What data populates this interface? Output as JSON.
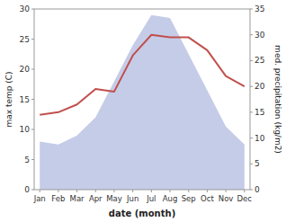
{
  "chart_data": {
    "type": "line",
    "categories": [
      "Jan",
      "Feb",
      "Mar",
      "Apr",
      "May",
      "Jun",
      "Jul",
      "Aug",
      "Sep",
      "Oct",
      "Nov",
      "Dec"
    ],
    "series": [
      {
        "type": "area",
        "color": "#c5cce8",
        "values": [
          8.0,
          7.5,
          9.0,
          12.0,
          18.0,
          24.0,
          29.0,
          28.5,
          22.5,
          16.5,
          10.5,
          7.5
        ]
      },
      {
        "type": "line",
        "color": "#c0504d",
        "axis": "y2",
        "values": [
          14.5,
          15.0,
          16.5,
          19.5,
          19.0,
          26.0,
          30.0,
          29.5,
          29.5,
          27.0,
          22.0,
          20.0
        ]
      }
    ],
    "xlabel": "date (month)",
    "ylabel": "max temp (C)",
    "y2label": "med. precipitation (kg/m2)",
    "ylim": [
      0,
      30
    ],
    "yticks": [
      0,
      5,
      10,
      15,
      20,
      25,
      30
    ],
    "y2lim": [
      0,
      35
    ],
    "y2ticks": [
      0,
      5,
      10,
      15,
      20,
      25,
      30,
      35
    ]
  }
}
